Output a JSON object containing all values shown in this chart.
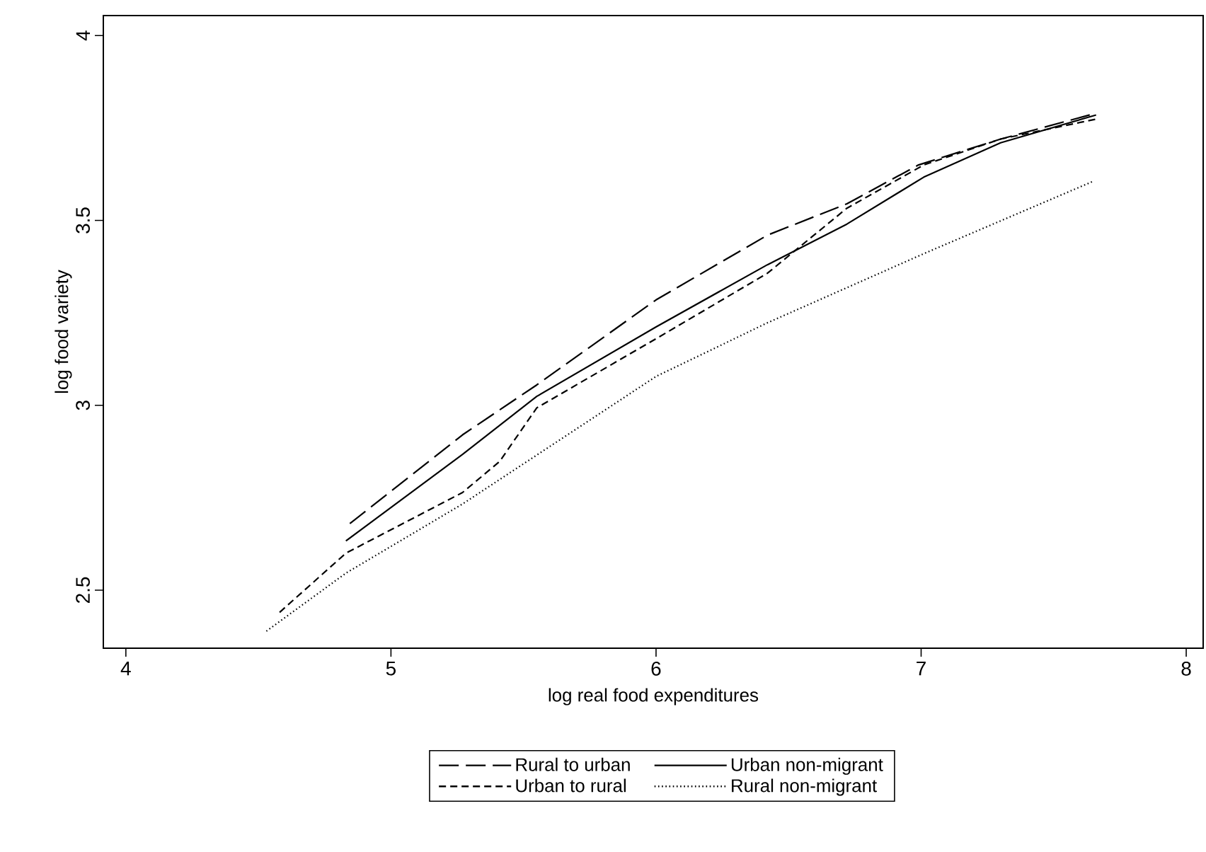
{
  "chart_data": {
    "type": "line",
    "xlabel": "log real food expenditures",
    "ylabel": "log food variety",
    "xlim": [
      3.915,
      8.064
    ],
    "ylim": [
      2.343,
      4.054
    ],
    "xticks": [
      4,
      5,
      6,
      7,
      8
    ],
    "yticks": [
      2.5,
      3,
      3.5,
      4
    ],
    "grid": false,
    "legend": "bottom",
    "marker": "none",
    "series": [
      {
        "name": "Rural to urban",
        "color": "#000000",
        "line_style": "long dashed",
        "x": [
          4.845,
          5.27,
          5.55,
          6.0,
          6.42,
          6.72,
          6.99,
          7.3,
          7.66
        ],
        "values": [
          2.68,
          2.92,
          3.055,
          3.285,
          3.46,
          3.545,
          3.65,
          3.72,
          3.79
        ]
      },
      {
        "name": "Urban non-migrant",
        "color": "#000000",
        "line_style": "solid",
        "x": [
          4.83,
          5.27,
          5.55,
          6.0,
          6.42,
          6.72,
          7.01,
          7.3,
          7.66
        ],
        "values": [
          2.633,
          2.867,
          3.024,
          3.212,
          3.38,
          3.49,
          3.617,
          3.71,
          3.785
        ]
      },
      {
        "name": "Urban to rural",
        "color": "#000000",
        "line_style": "dashed",
        "x": [
          4.58,
          4.83,
          5.27,
          5.41,
          5.55,
          6.0,
          6.42,
          6.72,
          7.01,
          7.3,
          7.66
        ],
        "values": [
          2.44,
          2.6,
          2.764,
          2.848,
          2.993,
          3.18,
          3.357,
          3.533,
          3.65,
          3.72,
          3.774
        ]
      },
      {
        "name": "Rural non-migrant",
        "color": "#000000",
        "line_style": "dotted",
        "x": [
          4.53,
          4.83,
          5.27,
          6.0,
          6.42,
          7.01,
          7.65
        ],
        "values": [
          2.389,
          2.546,
          2.733,
          3.078,
          3.223,
          3.41,
          3.606
        ]
      }
    ]
  }
}
